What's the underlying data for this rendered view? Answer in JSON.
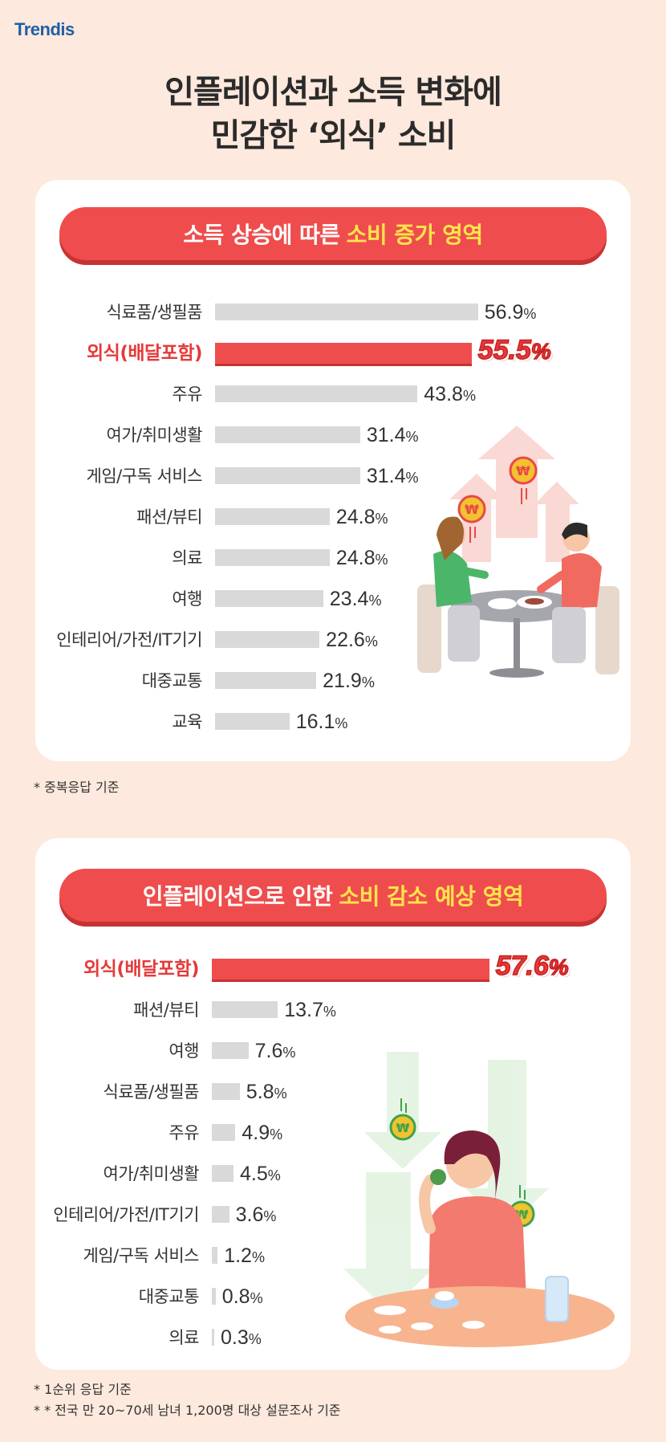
{
  "brand": "Trendis",
  "title_line1": "인플레이션과 소득 변화에",
  "title_line2": "민감한 ‘외식’ 소비",
  "colors": {
    "accent": "#ef4d4d",
    "highlight_text": "#ffe34d",
    "bar": "#d9d9d9",
    "background": "#fde9dd"
  },
  "chart_data": [
    {
      "type": "bar",
      "orientation": "horizontal",
      "title": "소득 상승에 따른 소비 증가 영역",
      "title_plain": "소득 상승에 따른",
      "title_highlight": "소비 증가 영역",
      "unit": "%",
      "highlight_category": "외식(배달포함)",
      "categories": [
        "식료품/생필품",
        "외식(배달포함)",
        "주유",
        "여가/취미생활",
        "게임/구독 서비스",
        "패션/뷰티",
        "의료",
        "여행",
        "인테리어/가전/IT기기",
        "대중교통",
        "교육"
      ],
      "values": [
        56.9,
        55.5,
        43.8,
        31.4,
        31.4,
        24.8,
        24.8,
        23.4,
        22.6,
        21.9,
        16.1
      ],
      "value_labels": [
        "56.9",
        "55.5",
        "43.8",
        "31.4",
        "31.4",
        "24.8",
        "24.8",
        "23.4",
        "22.6",
        "21.9",
        "16.1"
      ]
    },
    {
      "type": "bar",
      "orientation": "horizontal",
      "title": "인플레이션으로 인한 소비 감소 예상 영역",
      "title_plain": "인플레이션으로 인한",
      "title_highlight": "소비 감소 예상 영역",
      "unit": "%",
      "highlight_category": "외식(배달포함)",
      "categories": [
        "외식(배달포함)",
        "패션/뷰티",
        "여행",
        "식료품/생필품",
        "주유",
        "여가/취미생활",
        "인테리어/가전/IT기기",
        "게임/구독 서비스",
        "대중교통",
        "의료"
      ],
      "values": [
        57.6,
        13.7,
        7.6,
        5.8,
        4.9,
        4.5,
        3.6,
        1.2,
        0.8,
        0.3
      ],
      "value_labels": [
        "57.6",
        "13.7",
        "7.6",
        "5.8",
        "4.9",
        "4.5",
        "3.6",
        "1.2",
        "0.8",
        "0.3"
      ]
    }
  ],
  "notes": {
    "chart1": "* 중복응답 기준",
    "chart2_line1": "* 1순위 응답 기준",
    "chart2_line2": "* * 전국 만 20~70세 남녀 1,200명 대상 설문조사 기준"
  },
  "icons": [
    "won-coin-icon",
    "up-arrow-icon",
    "down-arrow-icon",
    "people-dining-illustration",
    "woman-eating-illustration"
  ]
}
